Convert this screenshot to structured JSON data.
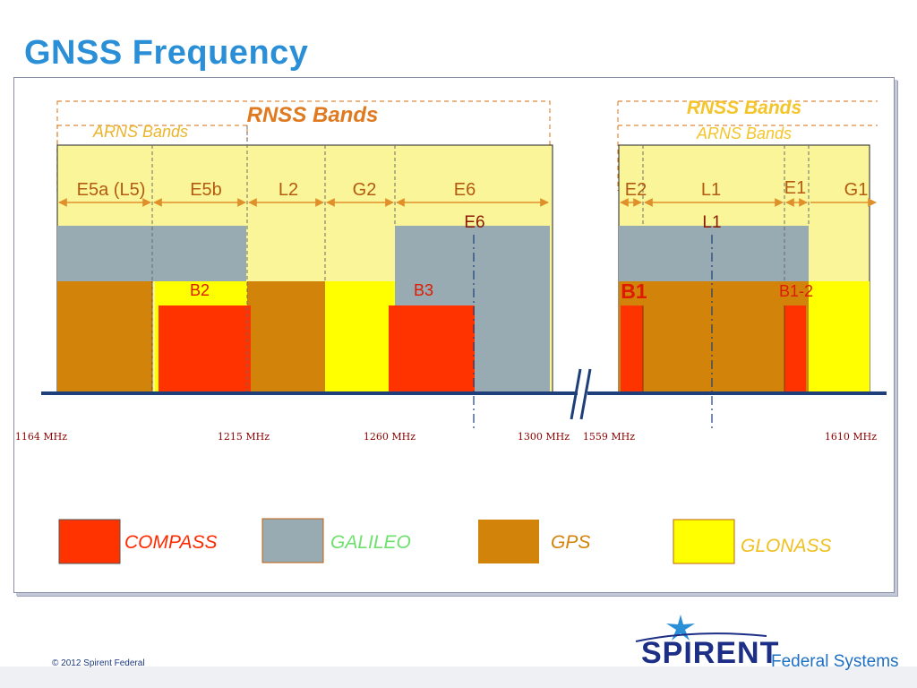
{
  "title": "GNSS Frequency",
  "left_block": {
    "rnss_label": "RNSS Bands",
    "arns_label": "ARNS Bands",
    "bands": [
      "E5a (L5)",
      "E5b",
      "L2",
      "G2",
      "E6"
    ],
    "e6_marker": "E6",
    "compass_labels": [
      "B2",
      "B3"
    ]
  },
  "right_block": {
    "rnss_label": "RNSS Bands",
    "arns_label": "ARNS Bands",
    "bands": [
      "E2",
      "L1",
      "E1",
      "G1"
    ],
    "l1_marker": "L1",
    "compass_labels": [
      "B1",
      "B1-2"
    ]
  },
  "frequencies": [
    "1164 MHz",
    "1215 MHz",
    "1260 MHz",
    "1300 MHz",
    "1559 MHz",
    "1610 MHz"
  ],
  "legend": [
    {
      "label": "COMPASS",
      "color": "#ff3300",
      "text_color": "#ff2a00"
    },
    {
      "label": "GALILEO",
      "color": "#98aab2",
      "text_color": "#6de06d"
    },
    {
      "label": "GPS",
      "color": "#d2840a",
      "text_color": "#d2840a"
    },
    {
      "label": "GLONASS",
      "color": "#ffff00",
      "text_color": "#f0c020"
    }
  ],
  "footer": {
    "copyright": "© 2012 Spirent Federal",
    "logo_word": "SPIRENT",
    "logo_sub": "Federal Systems"
  },
  "colors": {
    "title": "#2a8fd6",
    "compass": "#ff3300",
    "galileo": "#98aab2",
    "gps": "#d2840a",
    "glonass": "#ffff00",
    "band_bg": "#fbf59a",
    "arrow": "#e0902a",
    "baseline": "#1f3f7a"
  }
}
